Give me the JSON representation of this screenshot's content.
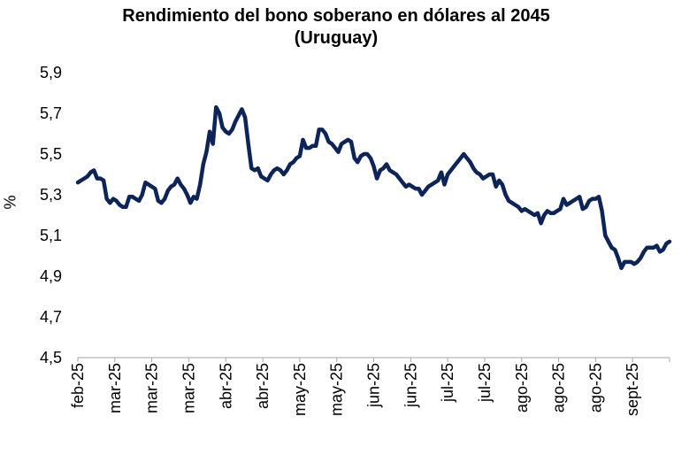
{
  "chart_data": {
    "type": "line",
    "title": "Rendimiento del bono soberano en dólares al 2045",
    "subtitle": "(Uruguay)",
    "xlabel": "",
    "ylabel": "%",
    "ylim": [
      4.5,
      5.9
    ],
    "yticks": [
      "5,9",
      "5,7",
      "5,5",
      "5,3",
      "5,1",
      "4,9",
      "4,7",
      "4,5"
    ],
    "yticks_values": [
      5.9,
      5.7,
      5.5,
      5.3,
      5.1,
      4.9,
      4.7,
      4.5
    ],
    "xticks": [
      "feb-25",
      "mar-25",
      "mar-25",
      "mar-25",
      "abr-25",
      "abr-25",
      "may-25",
      "may-25",
      "jun-25",
      "jun-25",
      "jul-25",
      "jul-25",
      "ago-25",
      "ago-25",
      "ago-25",
      "sept-25"
    ],
    "grid": false,
    "legend": "none",
    "line_color": "#0d2459",
    "series": [
      {
        "values": [
          5.36,
          5.37,
          5.38,
          5.39,
          5.41,
          5.42,
          5.38,
          5.38,
          5.37,
          5.28,
          5.26,
          5.28,
          5.27,
          5.25,
          5.24,
          5.24,
          5.29,
          5.29,
          5.28,
          5.27,
          5.3,
          5.36,
          5.35,
          5.34,
          5.33,
          5.27,
          5.26,
          5.28,
          5.32,
          5.34,
          5.35,
          5.38,
          5.35,
          5.33,
          5.3,
          5.26,
          5.29,
          5.28,
          5.35,
          5.45,
          5.51,
          5.61,
          5.55,
          5.73,
          5.7,
          5.63,
          5.61,
          5.6,
          5.62,
          5.66,
          5.69,
          5.72,
          5.68,
          5.55,
          5.43,
          5.42,
          5.43,
          5.39,
          5.38,
          5.37,
          5.4,
          5.42,
          5.43,
          5.42,
          5.4,
          5.42,
          5.45,
          5.46,
          5.48,
          5.49,
          5.57,
          5.53,
          5.53,
          5.54,
          5.54,
          5.62,
          5.62,
          5.6,
          5.56,
          5.55,
          5.53,
          5.51,
          5.55,
          5.56,
          5.57,
          5.56,
          5.48,
          5.46,
          5.49,
          5.5,
          5.5,
          5.48,
          5.44,
          5.38,
          5.42,
          5.43,
          5.45,
          5.42,
          5.41,
          5.4,
          5.38,
          5.36,
          5.34,
          5.35,
          5.34,
          5.33,
          5.33,
          5.3,
          5.32,
          5.34,
          5.35,
          5.36,
          5.37,
          5.41,
          5.35,
          5.4,
          5.42,
          5.44,
          5.46,
          5.48,
          5.5,
          5.48,
          5.46,
          5.43,
          5.41,
          5.4,
          5.38,
          5.39,
          5.4,
          5.4,
          5.34,
          5.37,
          5.35,
          5.3,
          5.27,
          5.26,
          5.25,
          5.24,
          5.22,
          5.23,
          5.22,
          5.21,
          5.2,
          5.21,
          5.16,
          5.2,
          5.22,
          5.21,
          5.21,
          5.22,
          5.23,
          5.28,
          5.25,
          5.26,
          5.27,
          5.28,
          5.29,
          5.23,
          5.24,
          5.27,
          5.28,
          5.28,
          5.29,
          5.22,
          5.1,
          5.07,
          5.04,
          5.03,
          4.99,
          4.94,
          4.97,
          4.97,
          4.97,
          4.96,
          4.97,
          4.99,
          5.02,
          5.04,
          5.04,
          5.04,
          5.05,
          5.02,
          5.03,
          5.06,
          5.07
        ]
      }
    ]
  }
}
